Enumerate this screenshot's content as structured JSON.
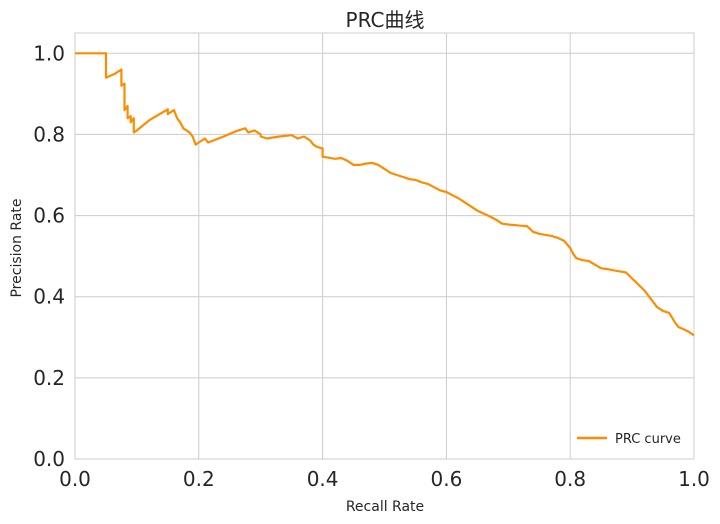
{
  "chart_data": {
    "type": "line",
    "title": "PRC曲线",
    "xlabel": "Recall Rate",
    "ylabel": "Precision Rate",
    "xlim": [
      0.0,
      1.0
    ],
    "ylim": [
      0.0,
      1.05
    ],
    "xticks": [
      "0.0",
      "0.2",
      "0.4",
      "0.6",
      "0.8",
      "1.0"
    ],
    "yticks": [
      "0.0",
      "0.2",
      "0.4",
      "0.6",
      "0.8",
      "1.0"
    ],
    "grid": true,
    "legend": {
      "position": "lower-right",
      "entries": [
        "PRC curve"
      ]
    },
    "series": [
      {
        "name": "PRC curve",
        "color": "#ff8c00",
        "x": [
          0.0,
          0.05,
          0.05,
          0.065,
          0.075,
          0.075,
          0.08,
          0.08,
          0.085,
          0.085,
          0.09,
          0.09,
          0.095,
          0.095,
          0.1,
          0.12,
          0.15,
          0.15,
          0.16,
          0.165,
          0.17,
          0.175,
          0.18,
          0.185,
          0.19,
          0.195,
          0.2,
          0.21,
          0.215,
          0.24,
          0.26,
          0.275,
          0.28,
          0.29,
          0.3,
          0.3,
          0.31,
          0.33,
          0.35,
          0.36,
          0.37,
          0.38,
          0.385,
          0.39,
          0.4,
          0.4,
          0.42,
          0.43,
          0.44,
          0.45,
          0.46,
          0.47,
          0.48,
          0.49,
          0.5,
          0.51,
          0.52,
          0.53,
          0.54,
          0.55,
          0.56,
          0.57,
          0.58,
          0.59,
          0.6,
          0.61,
          0.62,
          0.63,
          0.64,
          0.65,
          0.66,
          0.67,
          0.68,
          0.69,
          0.7,
          0.72,
          0.73,
          0.74,
          0.75,
          0.77,
          0.78,
          0.79,
          0.8,
          0.805,
          0.81,
          0.82,
          0.83,
          0.85,
          0.86,
          0.87,
          0.89,
          0.9,
          0.91,
          0.92,
          0.93,
          0.94,
          0.95,
          0.96,
          0.97,
          0.975,
          0.98,
          0.99,
          1.0
        ],
        "y": [
          1.0,
          1.0,
          0.94,
          0.95,
          0.96,
          0.92,
          0.925,
          0.86,
          0.87,
          0.84,
          0.845,
          0.83,
          0.84,
          0.805,
          0.81,
          0.835,
          0.862,
          0.85,
          0.86,
          0.84,
          0.83,
          0.815,
          0.81,
          0.805,
          0.795,
          0.775,
          0.78,
          0.79,
          0.78,
          0.795,
          0.808,
          0.815,
          0.805,
          0.81,
          0.8,
          0.795,
          0.79,
          0.795,
          0.798,
          0.79,
          0.795,
          0.785,
          0.775,
          0.77,
          0.765,
          0.745,
          0.74,
          0.742,
          0.735,
          0.725,
          0.725,
          0.728,
          0.73,
          0.725,
          0.715,
          0.705,
          0.7,
          0.695,
          0.69,
          0.688,
          0.682,
          0.678,
          0.67,
          0.662,
          0.658,
          0.65,
          0.642,
          0.632,
          0.622,
          0.612,
          0.605,
          0.598,
          0.59,
          0.58,
          0.578,
          0.575,
          0.574,
          0.56,
          0.555,
          0.55,
          0.545,
          0.538,
          0.52,
          0.505,
          0.495,
          0.49,
          0.488,
          0.47,
          0.468,
          0.465,
          0.46,
          0.445,
          0.43,
          0.415,
          0.395,
          0.375,
          0.365,
          0.36,
          0.335,
          0.325,
          0.322,
          0.315,
          0.305
        ]
      }
    ]
  }
}
